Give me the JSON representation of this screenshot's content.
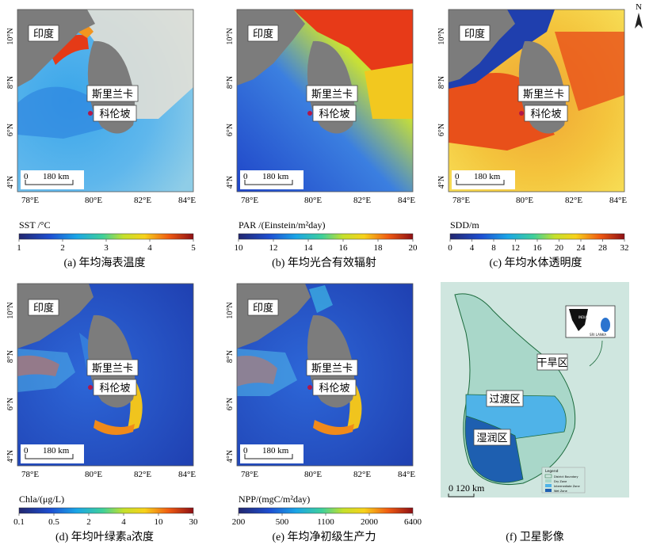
{
  "compass": "N",
  "common": {
    "india_label": "印度",
    "srilanka_label": "斯里兰卡",
    "colombo_label": "科伦坡",
    "scalebar_zero": "0",
    "scalebar_dist": "180 km",
    "lat_ticks": [
      "10°N",
      "8°N",
      "6°N",
      "4°N"
    ],
    "lon_ticks": [
      "78°E",
      "80°E",
      "82°E",
      "84°E"
    ]
  },
  "panels": [
    {
      "id": "a",
      "caption": "(a) 年均海表温度",
      "colorbar_title": "SST /°C",
      "colorbar_ticks": [
        "1",
        "2",
        "3",
        "4",
        "5"
      ],
      "scheme": "cool-to-warm"
    },
    {
      "id": "b",
      "caption": "(b) 年均光合有效辐射",
      "colorbar_title": "PAR /(Einstein/m²day)",
      "colorbar_ticks": [
        "10",
        "12",
        "14",
        "16",
        "18",
        "20"
      ],
      "scheme": "cool-to-warm"
    },
    {
      "id": "c",
      "caption": "(c) 年均水体透明度",
      "colorbar_title": "SDD/m",
      "colorbar_ticks": [
        "0",
        "4",
        "8",
        "12",
        "16",
        "20",
        "24",
        "28",
        "32"
      ],
      "scheme": "cool-to-warm"
    },
    {
      "id": "d",
      "caption": "(d) 年均叶绿素a浓度",
      "colorbar_title": "Chla/(μg/L)",
      "colorbar_ticks": [
        "0.1",
        "0.5",
        "2",
        "4",
        "10",
        "30"
      ],
      "scheme": "cool-to-warm"
    },
    {
      "id": "e",
      "caption": "(e) 年均净初级生产力",
      "colorbar_title": "NPP/(mgC/m²day)",
      "colorbar_ticks": [
        "200",
        "500",
        "1100",
        "2000",
        "6400"
      ],
      "scheme": "cool-to-warm"
    }
  ],
  "satellite": {
    "caption": "(f) 卫星影像",
    "zones": [
      "干旱区",
      "过渡区",
      "湿润区"
    ],
    "scalebar": "0  120 km",
    "inset_labels": [
      "INDIA",
      "SRI LANKA"
    ],
    "legend_title": "Legend",
    "legend_items": [
      "District Boundary",
      "Dry Zone",
      "Intermediate Zone",
      "Wet Zone"
    ],
    "colors": {
      "dry": "#a9d7c9",
      "intermediate": "#4fb3e8",
      "wet": "#1e5fb0",
      "background": "#cfe6df",
      "border": "#1b6a3c"
    }
  },
  "colors": {
    "land": "#7c7c7c",
    "colombo_marker": "#b0174a"
  }
}
